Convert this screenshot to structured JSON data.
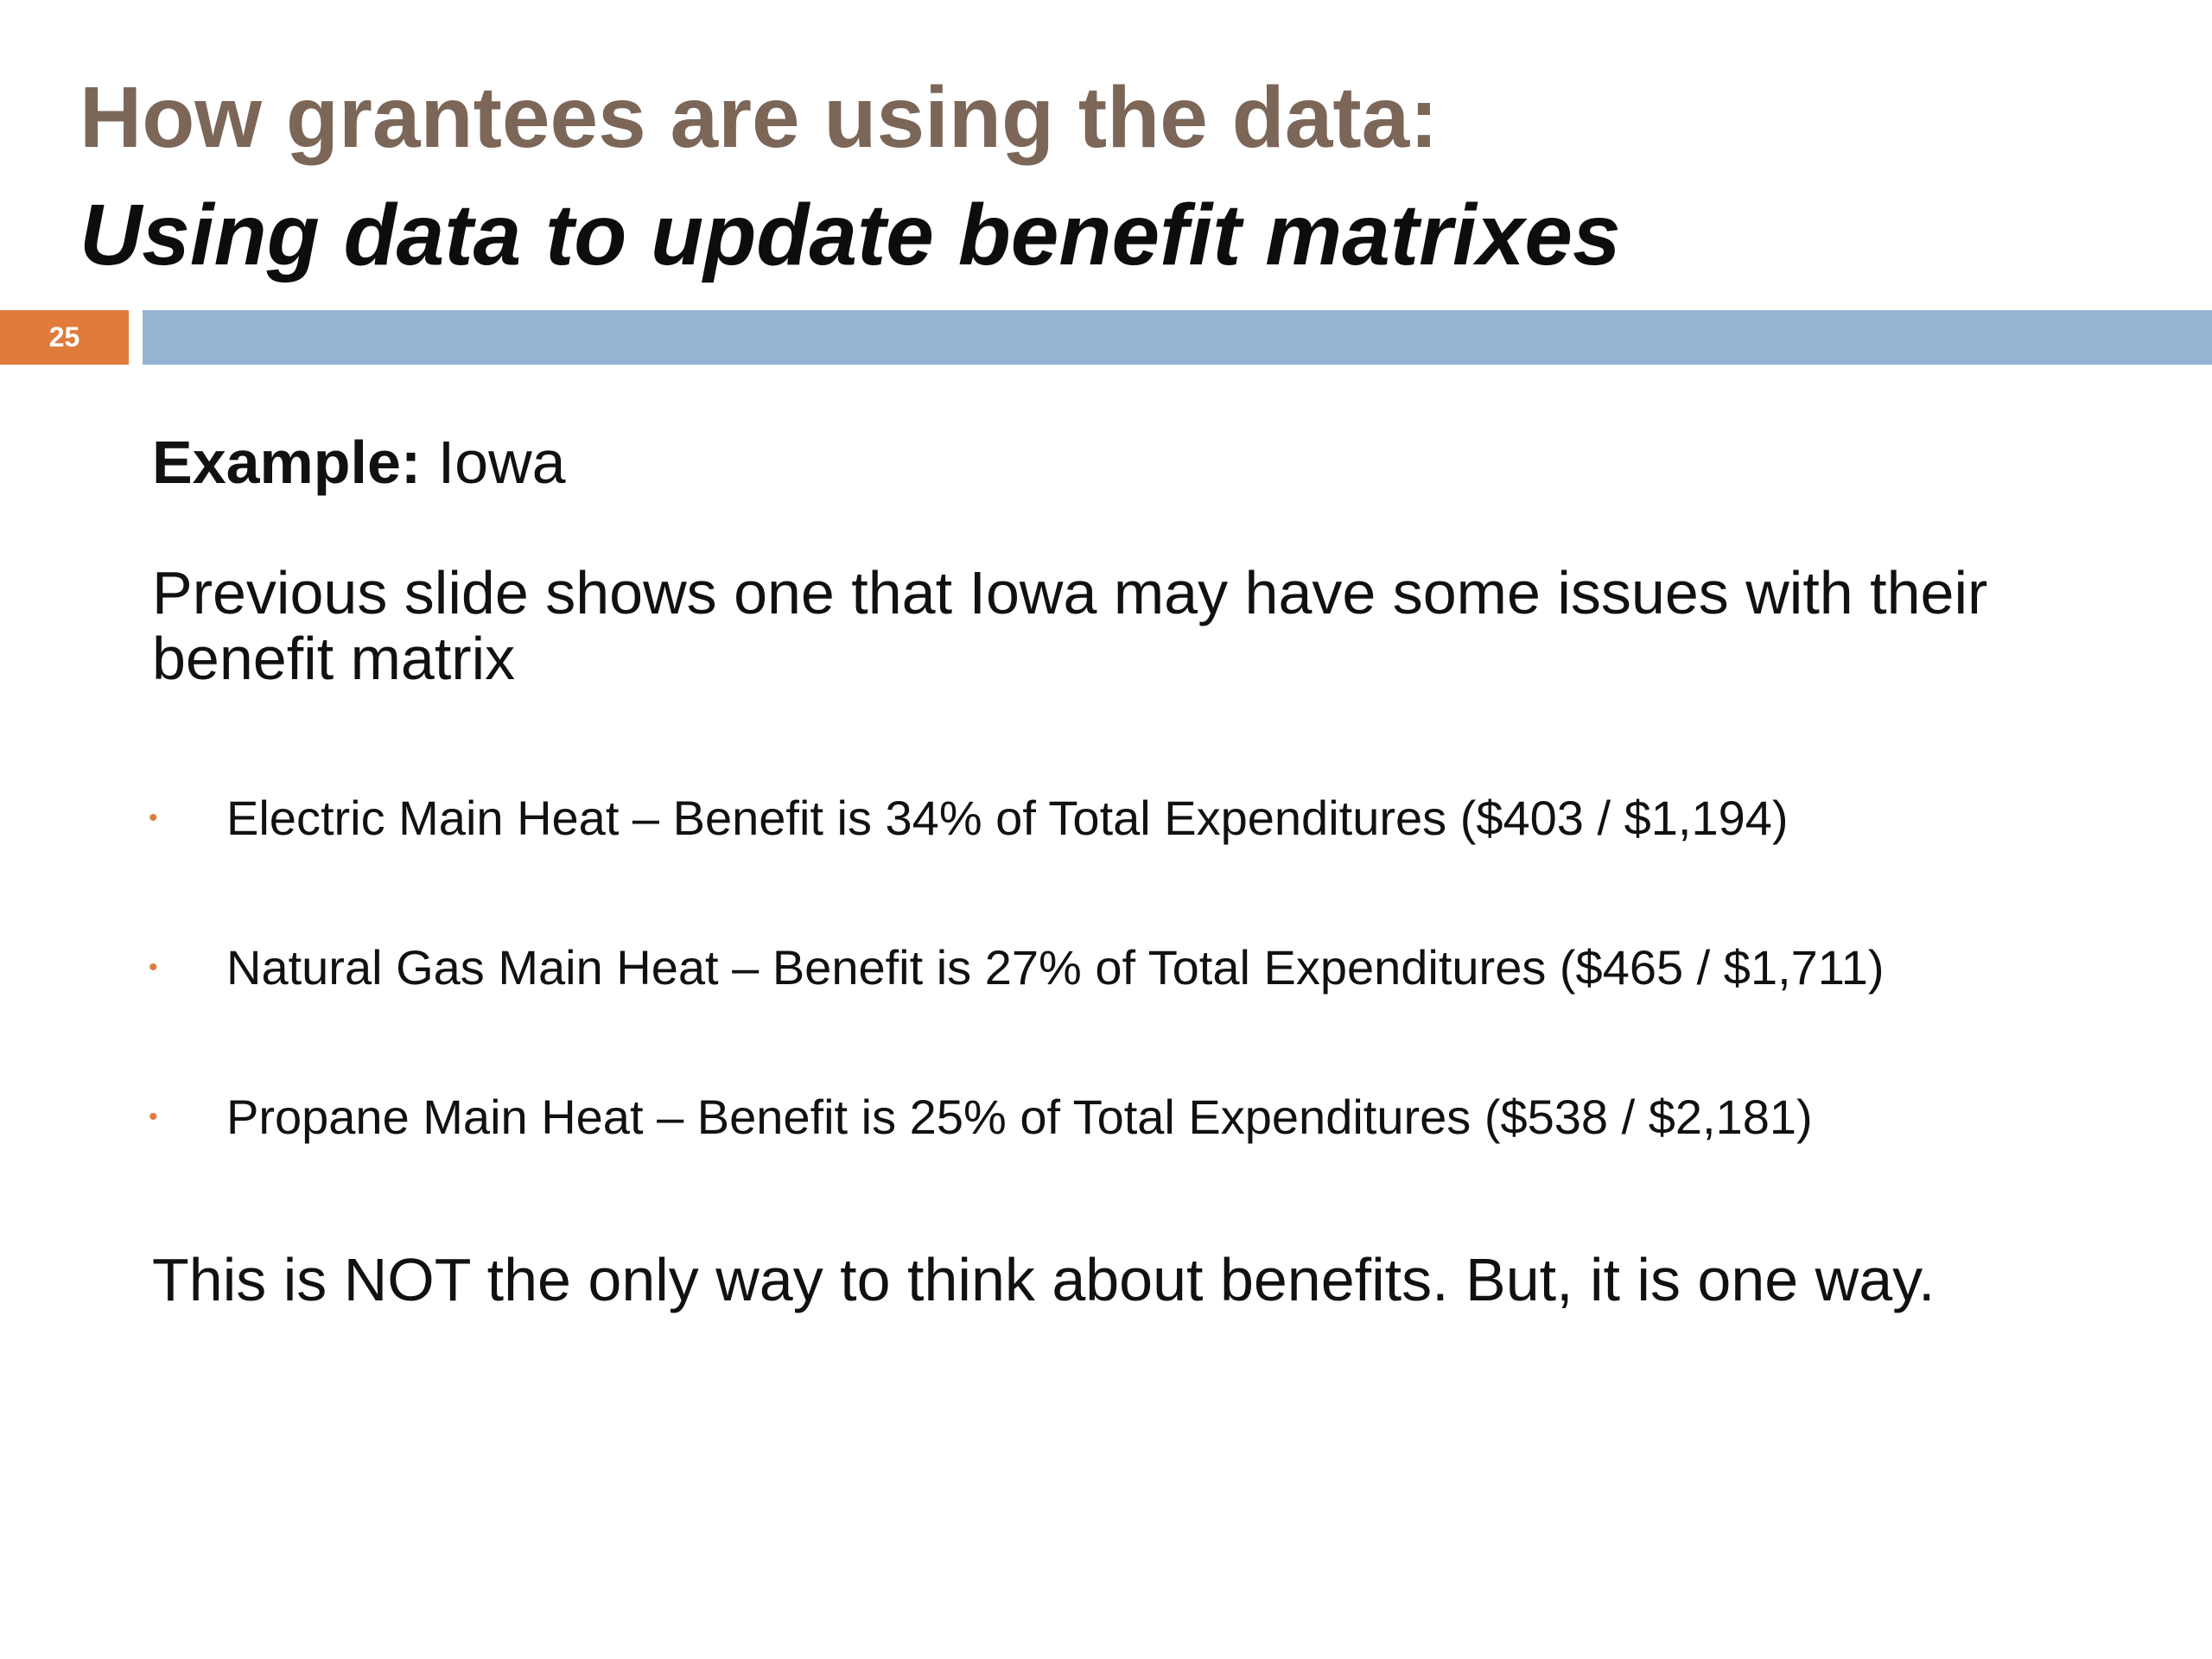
{
  "slide": {
    "title": "How grantees are using the data:",
    "subtitle": "Using data to update benefit matrixes",
    "number": "25",
    "accent_color": "#e07b3c",
    "bar_color": "#95b3d3",
    "title_color": "#7b6658"
  },
  "body": {
    "example_label": "Example:",
    "example_value": "Iowa",
    "intro": "Previous slide shows one that Iowa may have some issues with their benefit matrix",
    "bullets": [
      {
        "text": "Electric Main Heat – Benefit is 34% of Total Expenditures ($403 / $1,194)"
      },
      {
        "text": "Natural Gas Main Heat – Benefit is 27% of Total Expenditures ($465 / $1,711)"
      },
      {
        "text": "Propane Main Heat – Benefit is 25% of Total Expenditures ($538 / $2,181)"
      }
    ],
    "closing": "This is NOT the only way to think about benefits. But, it is one way."
  }
}
